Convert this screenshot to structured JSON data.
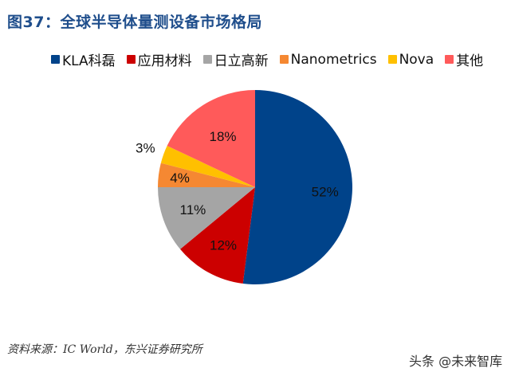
{
  "title": "图37：全球半导体量测设备市场格局",
  "legend": [
    {
      "label": "KLA科磊",
      "color": "#00438a"
    },
    {
      "label": "应用材料",
      "color": "#cc0000"
    },
    {
      "label": "日立高新",
      "color": "#a5a5a5"
    },
    {
      "label": "Nanometrics",
      "color": "#f58832"
    },
    {
      "label": "Nova",
      "color": "#ffc000"
    },
    {
      "label": "其他",
      "color": "#ff5a5a"
    }
  ],
  "source": "资料来源：IC World，东兴证券研究所",
  "watermark": "头条 @未来智库",
  "chart_data": {
    "type": "pie",
    "title": "图37：全球半导体量测设备市场格局",
    "categories": [
      "KLA科磊",
      "应用材料",
      "日立高新",
      "Nanometrics",
      "Nova",
      "其他"
    ],
    "values": [
      52,
      12,
      11,
      4,
      3,
      18
    ],
    "labels": [
      "52%",
      "12%",
      "11%",
      "4%",
      "3%",
      "18%"
    ],
    "colors": [
      "#00438a",
      "#cc0000",
      "#a5a5a5",
      "#f58832",
      "#ffc000",
      "#ff5a5a"
    ],
    "start_angle": "12 o'clock, clockwise",
    "legend_position": "top",
    "unit": "%"
  }
}
